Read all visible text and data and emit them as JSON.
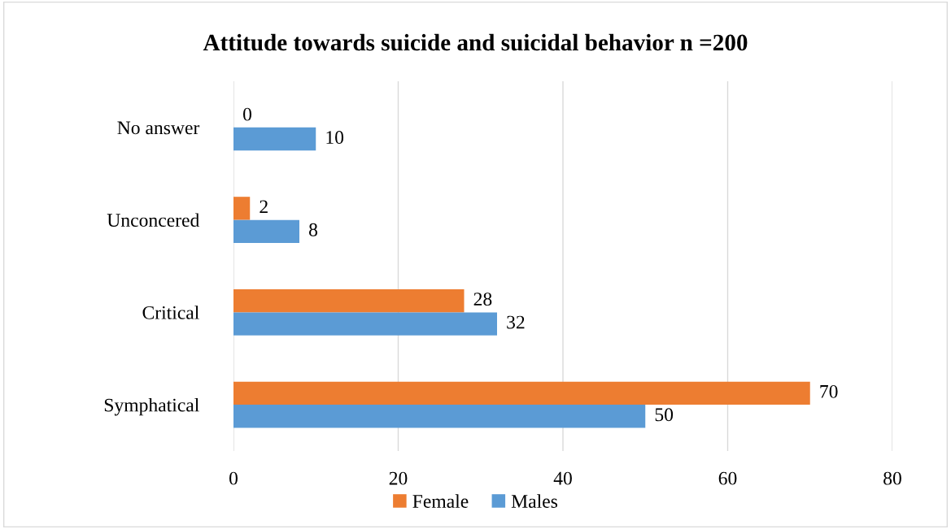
{
  "chart_data": {
    "type": "bar",
    "orientation": "horizontal",
    "title": "Attitude towards suicide and suicidal behavior n =200",
    "categories": [
      "No answer",
      "Unconcered",
      "Critical",
      "Symphatical"
    ],
    "series": [
      {
        "name": "Female",
        "color": "#ed7d31",
        "values": [
          0,
          2,
          28,
          70
        ]
      },
      {
        "name": "Males",
        "color": "#5b9bd5",
        "values": [
          10,
          8,
          32,
          50
        ]
      }
    ],
    "xlim": [
      0,
      80
    ],
    "xticks": [
      0,
      20,
      40,
      60,
      80
    ],
    "grid": "x",
    "legend": "bottom",
    "data_labels": true
  }
}
